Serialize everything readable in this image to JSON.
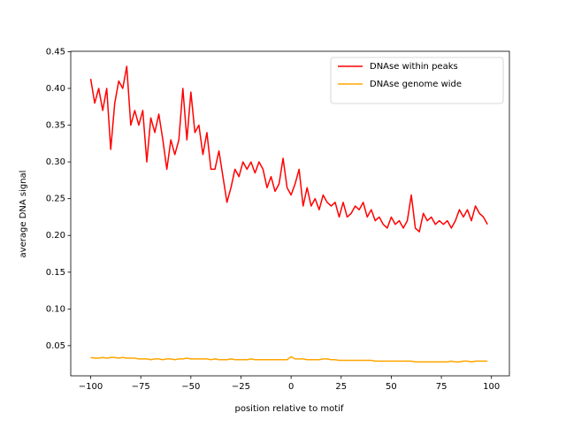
{
  "chart_data": {
    "type": "line",
    "xlabel": "position relative to motif",
    "ylabel": "average DNA signal",
    "x": [
      -100,
      -98,
      -96,
      -94,
      -92,
      -90,
      -88,
      -86,
      -84,
      -82,
      -80,
      -78,
      -76,
      -74,
      -72,
      -70,
      -68,
      -66,
      -64,
      -62,
      -60,
      -58,
      -56,
      -54,
      -52,
      -50,
      -48,
      -46,
      -44,
      -42,
      -40,
      -38,
      -36,
      -34,
      -32,
      -30,
      -28,
      -26,
      -24,
      -22,
      -20,
      -18,
      -16,
      -14,
      -12,
      -10,
      -8,
      -6,
      -4,
      -2,
      0,
      2,
      4,
      6,
      8,
      10,
      12,
      14,
      16,
      18,
      20,
      22,
      24,
      26,
      28,
      30,
      32,
      34,
      36,
      38,
      40,
      42,
      44,
      46,
      48,
      50,
      52,
      54,
      56,
      58,
      60,
      62,
      64,
      66,
      68,
      70,
      72,
      74,
      76,
      78,
      80,
      82,
      84,
      86,
      88,
      90,
      92,
      94,
      96,
      98
    ],
    "series": [
      {
        "name": "DNAse within peaks",
        "color": "#ff0000",
        "values": [
          0.413,
          0.38,
          0.4,
          0.37,
          0.4,
          0.317,
          0.38,
          0.41,
          0.4,
          0.43,
          0.35,
          0.37,
          0.35,
          0.37,
          0.3,
          0.36,
          0.34,
          0.365,
          0.33,
          0.29,
          0.33,
          0.31,
          0.33,
          0.4,
          0.33,
          0.395,
          0.34,
          0.35,
          0.31,
          0.34,
          0.29,
          0.29,
          0.315,
          0.28,
          0.245,
          0.265,
          0.29,
          0.28,
          0.3,
          0.29,
          0.3,
          0.285,
          0.3,
          0.29,
          0.265,
          0.28,
          0.26,
          0.27,
          0.305,
          0.265,
          0.255,
          0.27,
          0.29,
          0.24,
          0.265,
          0.24,
          0.25,
          0.235,
          0.255,
          0.245,
          0.24,
          0.245,
          0.225,
          0.245,
          0.225,
          0.23,
          0.24,
          0.235,
          0.245,
          0.225,
          0.235,
          0.22,
          0.225,
          0.215,
          0.21,
          0.225,
          0.215,
          0.22,
          0.21,
          0.22,
          0.255,
          0.21,
          0.205,
          0.23,
          0.22,
          0.225,
          0.215,
          0.22,
          0.215,
          0.22,
          0.21,
          0.22,
          0.235,
          0.225,
          0.235,
          0.22,
          0.24,
          0.23,
          0.225,
          0.215
        ]
      },
      {
        "name": "DNAse genome wide",
        "color": "#ffa500",
        "values": [
          0.034,
          0.033,
          0.033,
          0.034,
          0.033,
          0.034,
          0.034,
          0.033,
          0.034,
          0.033,
          0.033,
          0.033,
          0.032,
          0.032,
          0.032,
          0.031,
          0.032,
          0.032,
          0.031,
          0.032,
          0.032,
          0.031,
          0.032,
          0.032,
          0.033,
          0.032,
          0.032,
          0.032,
          0.032,
          0.032,
          0.031,
          0.032,
          0.031,
          0.031,
          0.031,
          0.032,
          0.031,
          0.031,
          0.031,
          0.031,
          0.032,
          0.031,
          0.031,
          0.031,
          0.031,
          0.031,
          0.031,
          0.031,
          0.031,
          0.031,
          0.035,
          0.032,
          0.032,
          0.032,
          0.031,
          0.031,
          0.031,
          0.031,
          0.032,
          0.032,
          0.031,
          0.031,
          0.03,
          0.03,
          0.03,
          0.03,
          0.03,
          0.03,
          0.03,
          0.03,
          0.03,
          0.029,
          0.029,
          0.029,
          0.029,
          0.029,
          0.029,
          0.029,
          0.029,
          0.029,
          0.029,
          0.028,
          0.028,
          0.028,
          0.028,
          0.028,
          0.028,
          0.028,
          0.028,
          0.028,
          0.029,
          0.028,
          0.028,
          0.029,
          0.029,
          0.028,
          0.029,
          0.029,
          0.029,
          0.029
        ]
      }
    ],
    "xlim": [
      -109.95,
      108.95
    ],
    "ylim": [
      0.009,
      0.4505
    ],
    "xticks": [
      {
        "value": -100,
        "label": "−100"
      },
      {
        "value": -75,
        "label": "−75"
      },
      {
        "value": -50,
        "label": "−50"
      },
      {
        "value": -25,
        "label": "−25"
      },
      0,
      25,
      50,
      75,
      100
    ],
    "yticks": [
      0.05,
      {
        "value": 0.1,
        "label": "0.10"
      },
      0.15,
      {
        "value": 0.2,
        "label": "0.20"
      },
      0.25,
      {
        "value": 0.3,
        "label": "0.30"
      },
      0.35,
      {
        "value": 0.4,
        "label": "0.40"
      },
      0.45
    ],
    "legend": "upper right"
  }
}
